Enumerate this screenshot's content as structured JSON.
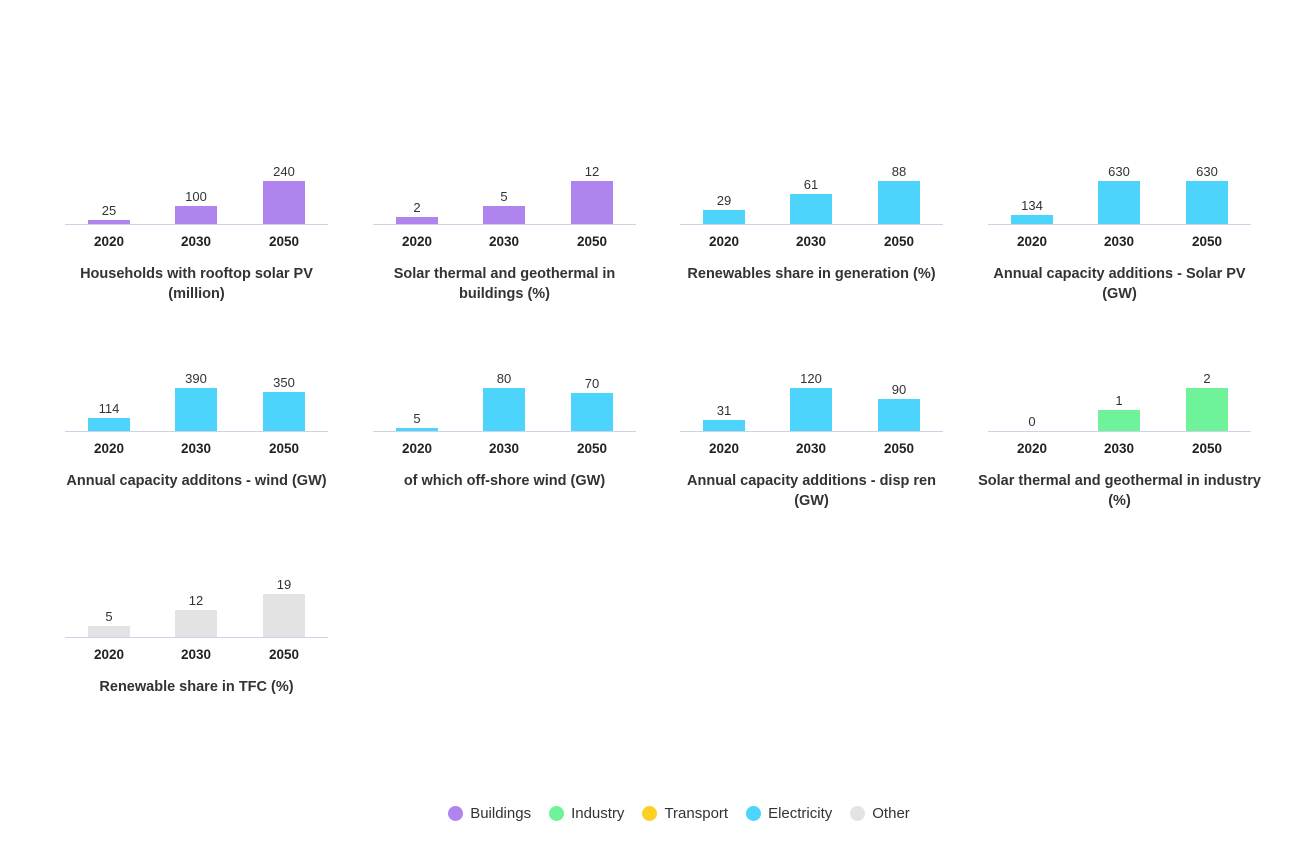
{
  "colors": {
    "Buildings": "#b084ee",
    "Industry": "#6ef29a",
    "Transport": "#fdd024",
    "Electricity": "#4dd4fc",
    "Other": "#e3e3e3"
  },
  "legend": [
    "Buildings",
    "Industry",
    "Transport",
    "Electricity",
    "Other"
  ],
  "chart_data": [
    {
      "type": "bar",
      "title": "Households with rooftop solar PV (million)",
      "categories": [
        "2020",
        "2030",
        "2050"
      ],
      "values": [
        25,
        100,
        240
      ],
      "sector": "Buildings"
    },
    {
      "type": "bar",
      "title": "Solar thermal and geothermal in buildings (%)",
      "categories": [
        "2020",
        "2030",
        "2050"
      ],
      "values": [
        2,
        5,
        12
      ],
      "sector": "Buildings"
    },
    {
      "type": "bar",
      "title": "Renewables share in generation (%)",
      "categories": [
        "2020",
        "2030",
        "2050"
      ],
      "values": [
        29,
        61,
        88
      ],
      "sector": "Electricity"
    },
    {
      "type": "bar",
      "title": "Annual capacity additions - Solar PV (GW)",
      "categories": [
        "2020",
        "2030",
        "2050"
      ],
      "values": [
        134,
        630,
        630
      ],
      "sector": "Electricity"
    },
    {
      "type": "bar",
      "title": "Annual capacity additons - wind (GW)",
      "categories": [
        "2020",
        "2030",
        "2050"
      ],
      "values": [
        114,
        390,
        350
      ],
      "sector": "Electricity"
    },
    {
      "type": "bar",
      "title": "of which off-shore wind (GW)",
      "categories": [
        "2020",
        "2030",
        "2050"
      ],
      "values": [
        5,
        80,
        70
      ],
      "sector": "Electricity"
    },
    {
      "type": "bar",
      "title": "Annual capacity additions - disp ren (GW)",
      "categories": [
        "2020",
        "2030",
        "2050"
      ],
      "values": [
        31,
        120,
        90
      ],
      "sector": "Electricity"
    },
    {
      "type": "bar",
      "title": "Solar thermal and geothermal in industry (%)",
      "categories": [
        "2020",
        "2030",
        "2050"
      ],
      "values": [
        0,
        1,
        2
      ],
      "sector": "Industry"
    },
    {
      "type": "bar",
      "title": "Renewable share in TFC (%)",
      "categories": [
        "2020",
        "2030",
        "2050"
      ],
      "values": [
        5,
        12,
        19
      ],
      "sector": "Other"
    }
  ]
}
